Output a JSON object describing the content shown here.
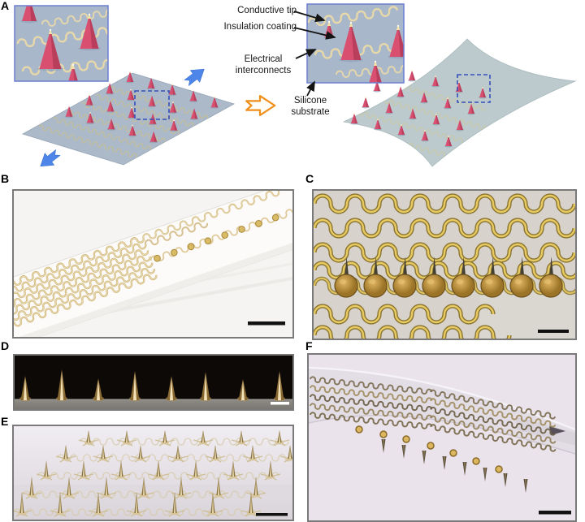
{
  "figure_panels": {
    "a": {
      "label": "A",
      "annotations": {
        "conductive_tip": "Conductive tip",
        "insulation_coating": "Insulation coating",
        "electrical_interconnects": "Electrical\ninterconnects",
        "silicone_substrate": "Silicone\nsubstrate"
      }
    },
    "b": {
      "label": "B"
    },
    "c": {
      "label": "C"
    },
    "d": {
      "label": "D"
    },
    "e": {
      "label": "E"
    },
    "f": {
      "label": "F"
    }
  },
  "colors": {
    "cone_pink": "#d84f6f",
    "cone_pink_shade": "#b03a57",
    "substrate_blue": "#abb9c9",
    "stretched_substrate": "#bccacd",
    "trace_cream": "#ead9a8",
    "gold_trace_dark": "#8a7430",
    "gold_trace_light": "#e7cb62",
    "gold_mesh": "#cdb277",
    "electrode_gold": "#c79a3f",
    "blue_arrow": "#4d86e8",
    "orange_arrow": "#ef8f1c",
    "inset_border": "#6b7fd0",
    "dashed_box": "#3550bb",
    "annotation_arrow": "#141414",
    "panel_c_bg": "#d7d2cb",
    "panel_d_bg": "#0c0907",
    "panel_e_bg": "#eae6ec",
    "panel_f_bg": "#eae3eb"
  }
}
